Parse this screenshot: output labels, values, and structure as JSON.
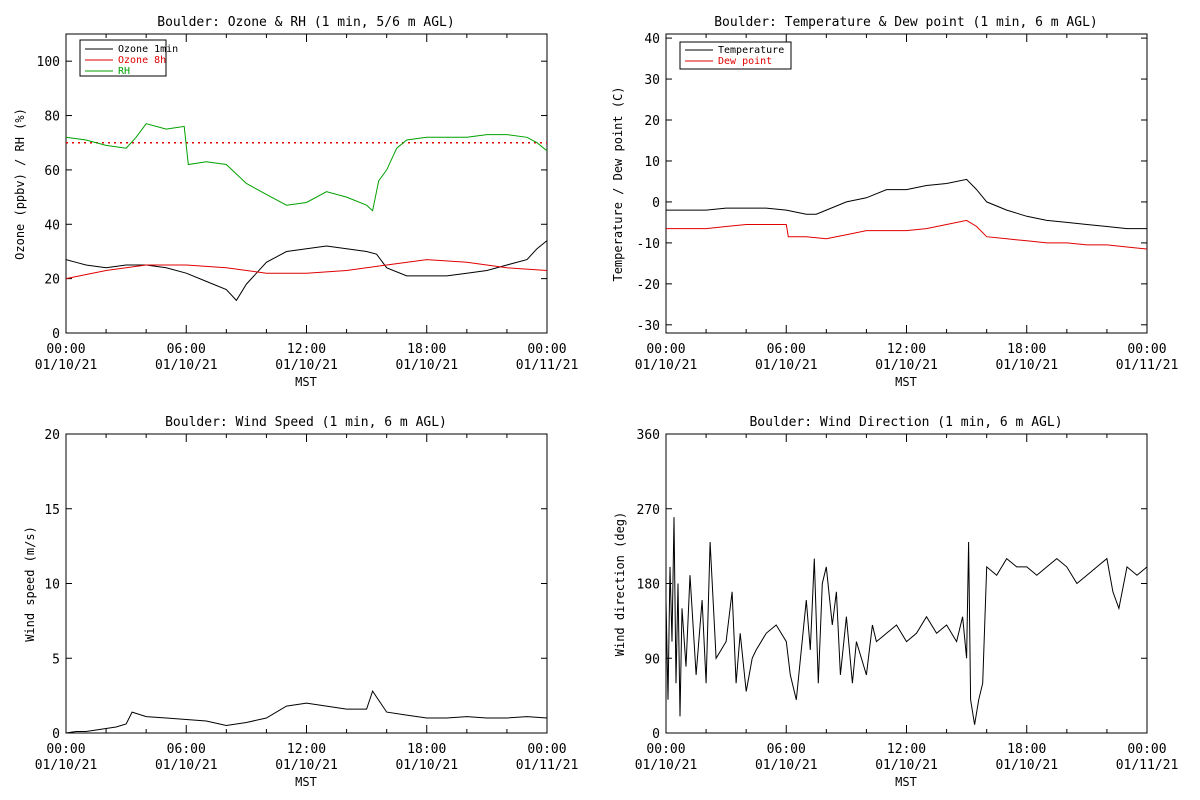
{
  "chart_data": [
    {
      "type": "line",
      "title": "Boulder: Ozone & RH (1 min, 5/6 m AGL)",
      "xlabel": "MST",
      "ylabel": "Ozone (ppbv) / RH (%)",
      "ylim": [
        0,
        110
      ],
      "yticks": [
        0,
        20,
        40,
        60,
        80,
        100
      ],
      "x_ticks": [
        {
          "time": "00:00",
          "date": "01/10/21"
        },
        {
          "time": "06:00",
          "date": "01/10/21"
        },
        {
          "time": "12:00",
          "date": "01/10/21"
        },
        {
          "time": "18:00",
          "date": "01/10/21"
        },
        {
          "time": "00:00",
          "date": "01/11/21"
        }
      ],
      "xlim_hours": [
        0,
        24
      ],
      "legend_placement": "top-left",
      "reference_line": {
        "y": 70,
        "color": "#e00000",
        "style": "dotted"
      },
      "series": [
        {
          "name": "Ozone 1min",
          "color": "#000000",
          "x": [
            0,
            0.5,
            1,
            2,
            3,
            4,
            5,
            6,
            7,
            8,
            8.5,
            9,
            10,
            11,
            12,
            13,
            14,
            15,
            15.5,
            16,
            17,
            18,
            19,
            20,
            21,
            22,
            23,
            23.5,
            24
          ],
          "y": [
            27,
            26,
            25,
            24,
            25,
            25,
            24,
            22,
            19,
            16,
            12,
            18,
            26,
            30,
            31,
            32,
            31,
            30,
            29,
            24,
            21,
            21,
            21,
            22,
            23,
            25,
            27,
            31,
            34
          ]
        },
        {
          "name": "Ozone 8h",
          "color": "#e00000",
          "x": [
            0,
            2,
            4,
            6,
            8,
            10,
            12,
            14,
            16,
            18,
            20,
            22,
            24
          ],
          "y": [
            20,
            23,
            25,
            25,
            24,
            22,
            22,
            23,
            25,
            27,
            26,
            24,
            23
          ]
        },
        {
          "name": "RH",
          "color": "#00a000",
          "x": [
            0,
            1,
            2,
            3,
            3.5,
            4,
            5,
            5.9,
            6.1,
            7,
            8,
            9,
            10,
            11,
            12,
            13,
            14,
            15,
            15.3,
            15.6,
            16,
            16.5,
            17,
            18,
            19,
            20,
            21,
            22,
            23,
            23.5,
            24
          ],
          "y": [
            72,
            71,
            69,
            68,
            72,
            77,
            75,
            76,
            62,
            63,
            62,
            55,
            51,
            47,
            48,
            52,
            50,
            47,
            45,
            56,
            60,
            68,
            71,
            72,
            72,
            72,
            73,
            73,
            72,
            70,
            67
          ]
        }
      ]
    },
    {
      "type": "line",
      "title": "Boulder: Temperature & Dew point (1 min, 6 m AGL)",
      "xlabel": "MST",
      "ylabel": "Temperature / Dew point (C)",
      "ylim": [
        -32,
        41
      ],
      "yticks": [
        -30,
        -20,
        -10,
        0,
        10,
        20,
        30,
        40
      ],
      "x_ticks": [
        {
          "time": "00:00",
          "date": "01/10/21"
        },
        {
          "time": "06:00",
          "date": "01/10/21"
        },
        {
          "time": "12:00",
          "date": "01/10/21"
        },
        {
          "time": "18:00",
          "date": "01/10/21"
        },
        {
          "time": "00:00",
          "date": "01/11/21"
        }
      ],
      "xlim_hours": [
        0,
        24
      ],
      "legend_placement": "top-left",
      "series": [
        {
          "name": "Temperature",
          "color": "#000000",
          "x": [
            0,
            1,
            2,
            3,
            4,
            5,
            6,
            7,
            7.5,
            8,
            9,
            10,
            11,
            12,
            13,
            14,
            15,
            15.5,
            16,
            17,
            18,
            19,
            20,
            21,
            22,
            23,
            24
          ],
          "y": [
            -2,
            -2,
            -2,
            -1.5,
            -1.5,
            -1.5,
            -2,
            -3,
            -3,
            -2,
            0,
            1,
            3,
            3,
            4,
            4.5,
            5.5,
            3,
            0,
            -2,
            -3.5,
            -4.5,
            -5,
            -5.5,
            -6,
            -6.5,
            -6.5
          ]
        },
        {
          "name": "Dew point",
          "color": "#e00000",
          "x": [
            0,
            1,
            2,
            3,
            4,
            5,
            6,
            6.1,
            7,
            8,
            9,
            10,
            11,
            12,
            13,
            14,
            15,
            15.5,
            16,
            17,
            18,
            19,
            20,
            21,
            22,
            23,
            24
          ],
          "y": [
            -6.5,
            -6.5,
            -6.5,
            -6,
            -5.5,
            -5.5,
            -5.5,
            -8.5,
            -8.5,
            -9,
            -8,
            -7,
            -7,
            -7,
            -6.5,
            -5.5,
            -4.5,
            -6,
            -8.5,
            -9,
            -9.5,
            -10,
            -10,
            -10.5,
            -10.5,
            -11,
            -11.5
          ]
        }
      ]
    },
    {
      "type": "line",
      "title": "Boulder: Wind Speed (1 min, 6 m AGL)",
      "xlabel": "MST",
      "ylabel": "Wind speed (m/s)",
      "ylim": [
        0,
        20
      ],
      "yticks": [
        0,
        5,
        10,
        15,
        20
      ],
      "x_ticks": [
        {
          "time": "00:00",
          "date": "01/10/21"
        },
        {
          "time": "06:00",
          "date": "01/10/21"
        },
        {
          "time": "12:00",
          "date": "01/10/21"
        },
        {
          "time": "18:00",
          "date": "01/10/21"
        },
        {
          "time": "00:00",
          "date": "01/11/21"
        }
      ],
      "xlim_hours": [
        0,
        24
      ],
      "series": [
        {
          "color": "#000000",
          "x": [
            0,
            0.5,
            1,
            1.5,
            2,
            2.5,
            3,
            3.3,
            4,
            5,
            6,
            7,
            8,
            9,
            10,
            11,
            12,
            13,
            14,
            15,
            15.3,
            16,
            17,
            18,
            19,
            20,
            21,
            22,
            23,
            24
          ],
          "y": [
            0,
            0.1,
            0.1,
            0.2,
            0.3,
            0.4,
            0.6,
            1.4,
            1.1,
            1.0,
            0.9,
            0.8,
            0.5,
            0.7,
            1.0,
            1.8,
            2.0,
            1.8,
            1.6,
            1.6,
            2.8,
            1.4,
            1.2,
            1.0,
            1.0,
            1.1,
            1.0,
            1.0,
            1.1,
            1.0
          ]
        }
      ]
    },
    {
      "type": "line",
      "title": "Boulder: Wind Direction (1 min, 6 m AGL)",
      "xlabel": "MST",
      "ylabel": "Wind direction (deg)",
      "ylim": [
        0,
        360
      ],
      "yticks": [
        0,
        90,
        180,
        270,
        360
      ],
      "x_ticks": [
        {
          "time": "00:00",
          "date": "01/10/21"
        },
        {
          "time": "06:00",
          "date": "01/10/21"
        },
        {
          "time": "12:00",
          "date": "01/10/21"
        },
        {
          "time": "18:00",
          "date": "01/10/21"
        },
        {
          "time": "00:00",
          "date": "01/11/21"
        }
      ],
      "xlim_hours": [
        0,
        24
      ],
      "series": [
        {
          "color": "#000000",
          "x": [
            0,
            0.1,
            0.2,
            0.3,
            0.4,
            0.5,
            0.6,
            0.7,
            0.8,
            1,
            1.2,
            1.5,
            1.8,
            2,
            2.2,
            2.5,
            3,
            3.3,
            3.5,
            3.7,
            4,
            4.3,
            4.5,
            5,
            5.5,
            6,
            6.2,
            6.5,
            7,
            7.2,
            7.4,
            7.6,
            7.8,
            8,
            8.3,
            8.5,
            8.7,
            9,
            9.3,
            9.5,
            10,
            10.3,
            10.5,
            11,
            11.5,
            12,
            12.5,
            13,
            13.5,
            14,
            14.5,
            14.8,
            15,
            15.1,
            15.2,
            15.4,
            15.6,
            15.8,
            16,
            16.5,
            17,
            17.5,
            18,
            18.5,
            19,
            19.5,
            20,
            20.5,
            21,
            21.5,
            22,
            22.3,
            22.6,
            23,
            23.5,
            24
          ],
          "y": [
            160,
            40,
            200,
            110,
            260,
            60,
            180,
            20,
            150,
            80,
            190,
            70,
            160,
            60,
            230,
            90,
            110,
            170,
            60,
            120,
            50,
            90,
            100,
            120,
            130,
            110,
            70,
            40,
            160,
            100,
            210,
            60,
            180,
            200,
            130,
            170,
            70,
            140,
            60,
            110,
            70,
            130,
            110,
            120,
            130,
            110,
            120,
            140,
            120,
            130,
            110,
            140,
            90,
            230,
            40,
            10,
            40,
            60,
            200,
            190,
            210,
            200,
            200,
            190,
            200,
            210,
            200,
            180,
            190,
            200,
            210,
            170,
            150,
            200,
            190,
            200
          ]
        }
      ]
    }
  ],
  "legends": {
    "ozone_rh": [
      "Ozone 1min",
      "Ozone 8h",
      "RH"
    ],
    "temp_dew": [
      "Temperature",
      "Dew point"
    ]
  }
}
